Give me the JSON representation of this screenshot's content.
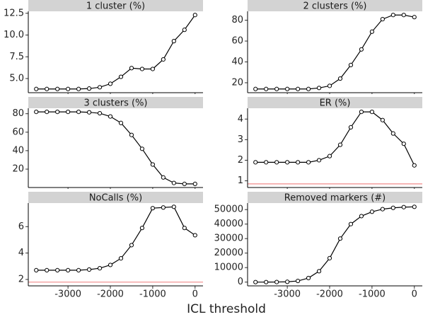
{
  "chart_data": [
    {
      "type": "line",
      "title": "1 cluster (%)",
      "color": "#000000",
      "x": [
        -3750,
        -3500,
        -3250,
        -3000,
        -2750,
        -2500,
        -2250,
        -2000,
        -1750,
        -1500,
        -1250,
        -1000,
        -750,
        -500,
        -250,
        0
      ],
      "values": [
        3.8,
        3.8,
        3.8,
        3.8,
        3.8,
        3.85,
        4.0,
        4.4,
        5.2,
        6.2,
        6.1,
        6.1,
        7.2,
        9.3,
        10.6,
        12.3
      ],
      "xlim": [
        -3937.5,
        187.5
      ],
      "xticks": [
        -3000,
        -2000,
        -1000,
        0
      ],
      "ylim": [
        3.375,
        12.725
      ],
      "yticks": [
        {
          "value": 5,
          "label": "5.0"
        },
        7.5,
        {
          "value": 10,
          "label": "10.0"
        },
        12.5
      ]
    },
    {
      "type": "line",
      "title": "2 clusters (%)",
      "color": "#000000",
      "x": [
        -3750,
        -3500,
        -3250,
        -3000,
        -2750,
        -2500,
        -2250,
        -2000,
        -1750,
        -1500,
        -1250,
        -1000,
        -750,
        -500,
        -250,
        0
      ],
      "values": [
        14,
        14,
        14,
        14,
        14,
        14,
        15,
        17,
        24,
        37,
        52,
        69,
        81,
        85,
        85,
        83
      ],
      "xlim": [
        -3937.5,
        187.5
      ],
      "xticks": [
        -3000,
        -2000,
        -1000,
        0
      ],
      "ylim": [
        10.45,
        88.55
      ],
      "yticks": [
        20,
        40,
        60,
        80
      ]
    },
    {
      "type": "line",
      "title": "3 clusters (%)",
      "color": "#000000",
      "x": [
        -3750,
        -3500,
        -3250,
        -3000,
        -2750,
        -2500,
        -2250,
        -2000,
        -1750,
        -1500,
        -1250,
        -1000,
        -750,
        -500,
        -250,
        0
      ],
      "values": [
        82,
        82,
        82,
        82,
        82,
        81.5,
        80.5,
        77,
        70,
        57,
        42,
        25,
        11,
        5,
        4,
        4
      ],
      "xlim": [
        -3937.5,
        187.5
      ],
      "xticks": [
        -3000,
        -2000,
        -1000,
        0
      ],
      "ylim": [
        0.1,
        85.9
      ],
      "yticks": [
        20,
        40,
        60,
        80
      ]
    },
    {
      "type": "line",
      "title": "ER (%)",
      "color": "#000000",
      "x": [
        -3750,
        -3500,
        -3250,
        -3000,
        -2750,
        -2500,
        -2250,
        -2000,
        -1750,
        -1500,
        -1250,
        -1000,
        -750,
        -500,
        -250,
        0
      ],
      "values": [
        1.9,
        1.9,
        1.9,
        1.9,
        1.9,
        1.9,
        2.0,
        2.2,
        2.75,
        3.6,
        4.35,
        4.35,
        3.95,
        3.3,
        2.8,
        1.75
      ],
      "hline": 0.85,
      "hline_color": "#f08a8a",
      "xlim": [
        -3937.5,
        187.5
      ],
      "xticks": [
        -3000,
        -2000,
        -1000,
        0
      ],
      "ylim": [
        0.675,
        4.525
      ],
      "yticks": [
        1,
        2,
        3,
        4
      ]
    },
    {
      "type": "line",
      "title": "NoCalls (%)",
      "color": "#000000",
      "x": [
        -3750,
        -3500,
        -3250,
        -3000,
        -2750,
        -2500,
        -2250,
        -2000,
        -1750,
        -1500,
        -1250,
        -1000,
        -750,
        -500,
        -250,
        0
      ],
      "values": [
        2.7,
        2.7,
        2.7,
        2.7,
        2.7,
        2.75,
        2.85,
        3.1,
        3.6,
        4.6,
        5.9,
        7.4,
        7.45,
        7.5,
        5.9,
        5.35
      ],
      "hline": 1.8,
      "hline_color": "#f08a8a",
      "xlim": [
        -3937.5,
        187.5
      ],
      "xticks": [
        -3000,
        -2000,
        -1000,
        0
      ],
      "ylim": [
        1.515,
        7.785
      ],
      "yticks": [
        2,
        4,
        6
      ]
    },
    {
      "type": "line",
      "title": "Removed markers (#)",
      "color": "#000000",
      "x": [
        -3750,
        -3500,
        -3250,
        -3000,
        -2750,
        -2500,
        -2250,
        -2000,
        -1750,
        -1500,
        -1250,
        -1000,
        -750,
        -500,
        -250,
        0
      ],
      "values": [
        0,
        0,
        50,
        200,
        800,
        2800,
        7500,
        16500,
        30000,
        40000,
        45500,
        48500,
        50300,
        51200,
        51700,
        51900
      ],
      "xlim": [
        -3937.5,
        187.5
      ],
      "xticks": [
        -3000,
        -2000,
        -1000,
        0
      ],
      "ylim": [
        -2595,
        54495
      ],
      "yticks": [
        0,
        10000,
        20000,
        30000,
        40000,
        50000
      ]
    }
  ],
  "xlabel": "ICL threshold"
}
